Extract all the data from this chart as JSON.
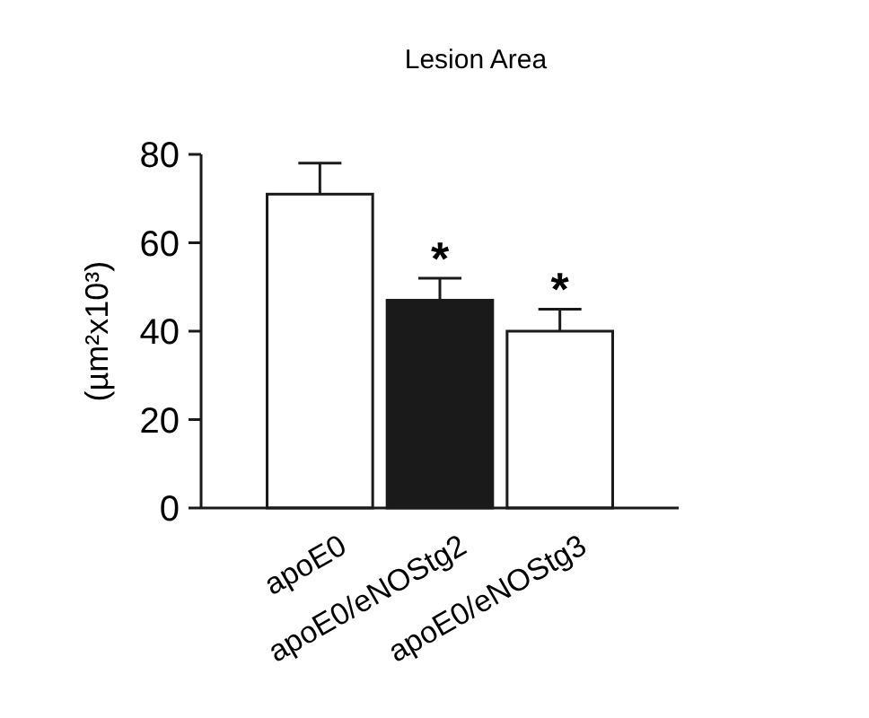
{
  "chart_data": {
    "type": "bar",
    "title": "Lesion Area",
    "ylabel": "(µm²x10³)",
    "categories": [
      "apoE0",
      "apoE0/eNOStg2",
      "apoE0/eNOStg3"
    ],
    "values": [
      71,
      47,
      40
    ],
    "colors": [
      "#ffffff",
      "#1a1a1a",
      "#ffffff"
    ],
    "errors": [
      7,
      5,
      5
    ],
    "ylim": [
      0,
      80
    ],
    "yticks": [
      0,
      20,
      40,
      60,
      80
    ],
    "annotations": [
      {
        "text": "*",
        "x": "apoE0/eNOStg2",
        "y": 52
      },
      {
        "text": "*",
        "x": "apoE0/eNOStg3",
        "y": 45
      }
    ],
    "grid": false
  }
}
